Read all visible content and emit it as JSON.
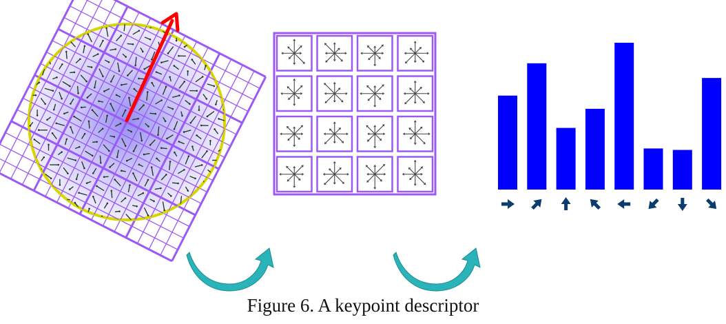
{
  "caption": "Figure 6. A keypoint descriptor",
  "colors": {
    "grid": "#9b59f5",
    "dominant_orientation": "#ff0000",
    "circle_outline": "#d6d600",
    "circle_fill": "#c9c6ff",
    "bar": "#0000ff",
    "direction_arrow": "#0b3c6e",
    "flow_arrow": "#2ab3b8",
    "gradient_mark": "#333333"
  },
  "icons": {
    "flow": "curved-arrow-icon",
    "direction": "direction-arrow-icon"
  },
  "chart_data": {
    "type": "bar",
    "categories": [
      "0°",
      "45°",
      "90°",
      "135°",
      "180°",
      "225°",
      "270°",
      "315°"
    ],
    "values": [
      0.64,
      0.86,
      0.42,
      0.55,
      1.0,
      0.28,
      0.27,
      0.76
    ],
    "ylim": [
      0,
      1
    ]
  }
}
